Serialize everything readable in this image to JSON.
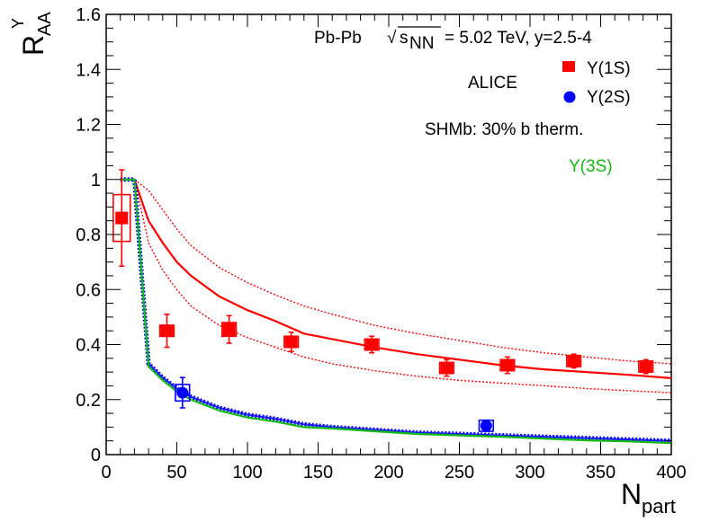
{
  "chart_data": {
    "type": "scatter",
    "title": "Pb-Pb √s_NN = 5.02 TeV, y=2.5-4",
    "header": {
      "system": "Pb-Pb",
      "sqrt_symbol": "√",
      "energy_var": "s",
      "energy_var_sub": "NN",
      "energy_value": "= 5.02 TeV, y=2.5-4"
    },
    "experiment_label": "ALICE",
    "model_label": "SHMb: 30% b therm.",
    "xlabel": {
      "main": "N",
      "sub": "part"
    },
    "ylabel": {
      "main": "R",
      "sub": "AA",
      "sup": "Υ"
    },
    "xlim": [
      0,
      400
    ],
    "ylim": [
      0,
      1.6
    ],
    "x_ticks": [
      "0",
      "50",
      "100",
      "150",
      "200",
      "250",
      "300",
      "350",
      "400"
    ],
    "y_ticks": [
      "0",
      "0.2",
      "0.4",
      "0.6",
      "0.8",
      "1",
      "1.2",
      "1.4",
      "1.6"
    ],
    "legend": {
      "position": "top-right",
      "entries": [
        {
          "label": "Υ(1S)",
          "marker": "square",
          "color": "#ff0000"
        },
        {
          "label": "Υ(2S)",
          "marker": "circle",
          "color": "#0000ff"
        },
        {
          "label": "Υ(3S)",
          "marker": "none",
          "color": "#11bb11"
        }
      ]
    },
    "series": [
      {
        "name": "Υ(1S) data",
        "color": "#ff0000",
        "marker": "square",
        "x": [
          11,
          43,
          87,
          131,
          188,
          241,
          284,
          331,
          382
        ],
        "y": [
          0.86,
          0.45,
          0.455,
          0.41,
          0.4,
          0.315,
          0.325,
          0.34,
          0.32
        ],
        "stat_err": [
          0.175,
          0.06,
          0.05,
          0.035,
          0.03,
          0.03,
          0.03,
          0.025,
          0.025
        ],
        "syst_box_half_width": [
          6,
          5,
          5,
          5,
          5,
          5,
          5,
          5,
          5
        ],
        "syst_err": [
          0.085,
          0.02,
          0.025,
          0.02,
          0.02,
          0.02,
          0.02,
          0.02,
          0.02
        ]
      },
      {
        "name": "Υ(2S) data",
        "color": "#0000ff",
        "marker": "circle",
        "x": [
          54,
          269
        ],
        "y": [
          0.225,
          0.105
        ],
        "stat_err": [
          0.055,
          0.02
        ],
        "syst_box_half_width": [
          5,
          5
        ],
        "syst_err": [
          0.03,
          0.02
        ]
      },
      {
        "name": "SHMb Υ(1S) central",
        "color": "#ff0000",
        "style": "solid",
        "x": [
          10,
          20,
          30,
          40,
          50,
          60,
          80,
          100,
          120,
          140,
          160,
          190,
          220,
          250,
          280,
          310,
          340,
          370,
          400
        ],
        "y": [
          1,
          1,
          0.85,
          0.77,
          0.7,
          0.65,
          0.575,
          0.525,
          0.485,
          0.44,
          0.42,
          0.39,
          0.365,
          0.345,
          0.325,
          0.31,
          0.3,
          0.29,
          0.278
        ]
      },
      {
        "name": "SHMb Υ(1S) upper",
        "color": "#ff0000",
        "style": "dotted",
        "x": [
          10,
          20,
          30,
          40,
          50,
          60,
          80,
          100,
          120,
          140,
          160,
          190,
          220,
          250,
          280,
          310,
          340,
          370,
          400
        ],
        "y": [
          1,
          1,
          0.96,
          0.89,
          0.82,
          0.76,
          0.68,
          0.625,
          0.58,
          0.54,
          0.51,
          0.47,
          0.44,
          0.415,
          0.39,
          0.37,
          0.355,
          0.34,
          0.33
        ]
      },
      {
        "name": "SHMb Υ(1S) lower",
        "color": "#ff0000",
        "style": "dotted",
        "x": [
          10,
          20,
          30,
          40,
          50,
          60,
          80,
          100,
          120,
          140,
          160,
          190,
          220,
          250,
          280,
          310,
          340,
          370,
          400
        ],
        "y": [
          1,
          1,
          0.77,
          0.67,
          0.6,
          0.54,
          0.47,
          0.425,
          0.39,
          0.355,
          0.33,
          0.305,
          0.285,
          0.27,
          0.26,
          0.25,
          0.24,
          0.232,
          0.225
        ]
      },
      {
        "name": "SHMb Υ(2S) band",
        "color": "#0000ff",
        "style": "band",
        "x": [
          10,
          20,
          25,
          30,
          40,
          50,
          60,
          80,
          100,
          120,
          140,
          160,
          190,
          220,
          250,
          280,
          310,
          340,
          370,
          400
        ],
        "y": [
          1,
          1,
          0.66,
          0.33,
          0.28,
          0.24,
          0.21,
          0.17,
          0.145,
          0.13,
          0.11,
          0.1,
          0.09,
          0.08,
          0.075,
          0.07,
          0.065,
          0.06,
          0.055,
          0.05
        ]
      },
      {
        "name": "SHMb Υ(3S)",
        "color": "#11bb11",
        "style": "solid",
        "x": [
          10,
          20,
          25,
          30,
          40,
          50,
          60,
          80,
          100,
          120,
          140,
          160,
          190,
          220,
          250,
          280,
          310,
          340,
          370,
          400
        ],
        "y": [
          1,
          1,
          0.66,
          0.32,
          0.27,
          0.23,
          0.2,
          0.16,
          0.135,
          0.12,
          0.1,
          0.095,
          0.085,
          0.075,
          0.07,
          0.065,
          0.058,
          0.052,
          0.048,
          0.042
        ]
      }
    ]
  }
}
